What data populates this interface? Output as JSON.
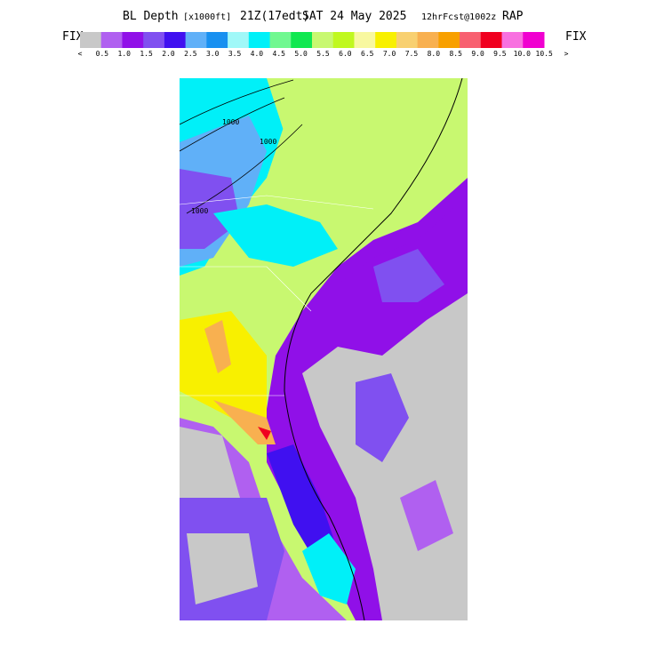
{
  "title": {
    "field": "BL Depth",
    "units": "[x1000ft]",
    "valid": "21Z(17edt)",
    "date": "SAT 24 May 2025",
    "forecast": "12hrFcst@1002z",
    "model": "RAP"
  },
  "fix_left": "FIX",
  "fix_right": "FIX",
  "legend": {
    "labels": [
      "<",
      "0.5",
      "1.0",
      "1.5",
      "2.0",
      "2.5",
      "3.0",
      "3.5",
      "4.0",
      "4.5",
      "5.0",
      "5.5",
      "6.0",
      "6.5",
      "7.0",
      "7.5",
      "8.0",
      "8.5",
      "9.0",
      "9.5",
      "10.0",
      "10.5",
      ">"
    ],
    "colors": [
      "#c8c8c8",
      "#b060f0",
      "#9010e8",
      "#8050f0",
      "#4010f0",
      "#60b0f8",
      "#1890f0",
      "#a0f8f8",
      "#00f0f8",
      "#70f890",
      "#10e850",
      "#c8f870",
      "#c0f820",
      "#f8f8a0",
      "#f8f000",
      "#f8d070",
      "#f8b050",
      "#f8a000",
      "#f86070",
      "#f00020",
      "#f870e0",
      "#f000d0"
    ]
  },
  "contour_labels": [
    "1000",
    "1000",
    "1000"
  ]
}
